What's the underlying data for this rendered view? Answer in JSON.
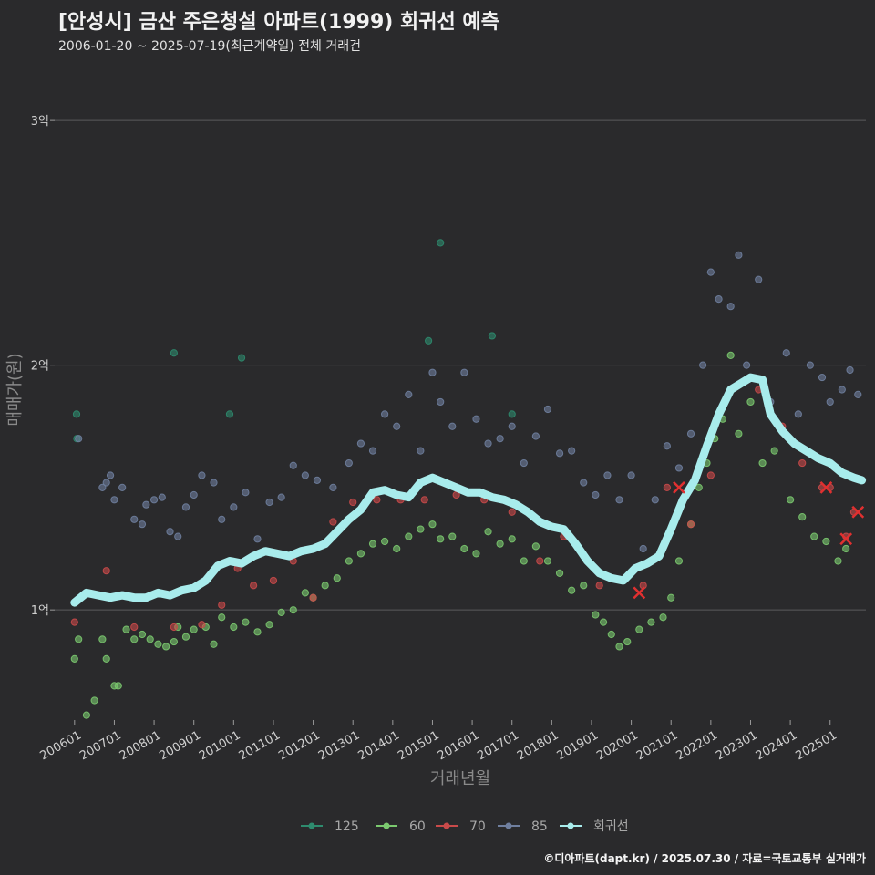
{
  "header": {
    "title": "[안성시] 금산 주은청설 아파트(1999) 회귀선 예측",
    "subtitle": "2006-01-20 ~ 2025-07-19(최근계약일) 전체 거래건"
  },
  "footer": {
    "credit": "©디아파트(dapt.kr) / 2025.07.30 / 자료=국토교통부 실거래가"
  },
  "colors": {
    "s125": "#2e8b6e",
    "s60": "#7bc96f",
    "s70": "#c94a4a",
    "s85": "#6f7f9f",
    "reg": "#a8ecec",
    "cancel": "#e03030"
  },
  "chart_data": {
    "type": "scatter",
    "title": "[안성시] 금산 주은청설 아파트(1999) 회귀선 예측",
    "xlabel": "거래년월",
    "ylabel": "매매가(원)",
    "x_unit": "years since 2006-01",
    "ylim": [
      0.55,
      3.25
    ],
    "y_unit": "억",
    "xlim": [
      -0.5,
      19.9
    ],
    "y_ticks": [
      {
        "value": 1,
        "label": "1억"
      },
      {
        "value": 2,
        "label": "2억"
      },
      {
        "value": 3,
        "label": "3억"
      }
    ],
    "x_ticks": [
      "200601",
      "200701",
      "200801",
      "200901",
      "201001",
      "201101",
      "201201",
      "201301",
      "201401",
      "201501",
      "201601",
      "201701",
      "201801",
      "201901",
      "202001",
      "202101",
      "202201",
      "202301",
      "202401",
      "202501"
    ],
    "legend": [
      "125",
      "60",
      "70",
      "85",
      "회귀선"
    ],
    "series": [
      {
        "name": "125",
        "points": [
          [
            0.05,
            1.8
          ],
          [
            0.06,
            1.7
          ],
          [
            2.5,
            2.05
          ],
          [
            3.9,
            1.8
          ],
          [
            4.2,
            2.03
          ],
          [
            8.9,
            2.1
          ],
          [
            9.2,
            2.5
          ],
          [
            10.5,
            2.12
          ],
          [
            11,
            1.8
          ]
        ]
      },
      {
        "name": "60",
        "points": [
          [
            0.0,
            0.8
          ],
          [
            0.1,
            0.88
          ],
          [
            0.3,
            0.57
          ],
          [
            0.5,
            0.63
          ],
          [
            0.7,
            0.88
          ],
          [
            0.8,
            0.8
          ],
          [
            1.0,
            0.69
          ],
          [
            1.1,
            0.69
          ],
          [
            1.3,
            0.92
          ],
          [
            1.5,
            0.88
          ],
          [
            1.7,
            0.9
          ],
          [
            1.9,
            0.88
          ],
          [
            2.1,
            0.86
          ],
          [
            2.3,
            0.85
          ],
          [
            2.5,
            0.87
          ],
          [
            2.6,
            0.93
          ],
          [
            2.8,
            0.89
          ],
          [
            3.0,
            0.92
          ],
          [
            3.3,
            0.93
          ],
          [
            3.5,
            0.86
          ],
          [
            3.7,
            0.97
          ],
          [
            4.0,
            0.93
          ],
          [
            4.3,
            0.95
          ],
          [
            4.6,
            0.91
          ],
          [
            4.9,
            0.94
          ],
          [
            5.2,
            0.99
          ],
          [
            5.5,
            1.0
          ],
          [
            5.8,
            1.07
          ],
          [
            6.0,
            1.05
          ],
          [
            6.3,
            1.1
          ],
          [
            6.6,
            1.13
          ],
          [
            6.9,
            1.2
          ],
          [
            7.2,
            1.23
          ],
          [
            7.5,
            1.27
          ],
          [
            7.8,
            1.28
          ],
          [
            8.1,
            1.25
          ],
          [
            8.4,
            1.3
          ],
          [
            8.7,
            1.33
          ],
          [
            9.0,
            1.35
          ],
          [
            9.2,
            1.29
          ],
          [
            9.5,
            1.3
          ],
          [
            9.8,
            1.25
          ],
          [
            10.1,
            1.23
          ],
          [
            10.4,
            1.32
          ],
          [
            10.7,
            1.27
          ],
          [
            11.0,
            1.29
          ],
          [
            11.3,
            1.2
          ],
          [
            11.6,
            1.26
          ],
          [
            11.9,
            1.2
          ],
          [
            12.2,
            1.15
          ],
          [
            12.5,
            1.08
          ],
          [
            12.8,
            1.1
          ],
          [
            13.1,
            0.98
          ],
          [
            13.3,
            0.95
          ],
          [
            13.5,
            0.9
          ],
          [
            13.7,
            0.85
          ],
          [
            13.9,
            0.87
          ],
          [
            14.2,
            0.92
          ],
          [
            14.5,
            0.95
          ],
          [
            14.8,
            0.97
          ],
          [
            15.0,
            1.05
          ],
          [
            15.2,
            1.2
          ],
          [
            15.5,
            1.35
          ],
          [
            15.7,
            1.5
          ],
          [
            15.9,
            1.6
          ],
          [
            16.1,
            1.7
          ],
          [
            16.3,
            1.78
          ],
          [
            16.5,
            2.04
          ],
          [
            16.7,
            1.72
          ],
          [
            17.0,
            1.85
          ],
          [
            17.3,
            1.6
          ],
          [
            17.6,
            1.65
          ],
          [
            18.0,
            1.45
          ],
          [
            18.3,
            1.38
          ],
          [
            18.6,
            1.3
          ],
          [
            18.9,
            1.28
          ],
          [
            19.2,
            1.2
          ],
          [
            19.4,
            1.25
          ]
        ]
      },
      {
        "name": "70",
        "points": [
          [
            0.0,
            0.95
          ],
          [
            0.8,
            1.16
          ],
          [
            1.5,
            0.93
          ],
          [
            2.5,
            0.93
          ],
          [
            3.2,
            0.94
          ],
          [
            3.7,
            1.02
          ],
          [
            4.1,
            1.17
          ],
          [
            4.5,
            1.1
          ],
          [
            5.0,
            1.12
          ],
          [
            5.5,
            1.2
          ],
          [
            6.0,
            1.05
          ],
          [
            6.5,
            1.36
          ],
          [
            7.0,
            1.44
          ],
          [
            7.6,
            1.45
          ],
          [
            8.2,
            1.45
          ],
          [
            8.8,
            1.45
          ],
          [
            9.6,
            1.47
          ],
          [
            10.3,
            1.45
          ],
          [
            11.0,
            1.4
          ],
          [
            11.7,
            1.2
          ],
          [
            12.3,
            1.3
          ],
          [
            13.2,
            1.1
          ],
          [
            14.3,
            1.1
          ],
          [
            14.9,
            1.5
          ],
          [
            15.5,
            1.35
          ],
          [
            16.0,
            1.55
          ],
          [
            17.2,
            1.9
          ],
          [
            17.8,
            1.75
          ],
          [
            18.3,
            1.6
          ],
          [
            18.8,
            1.5
          ],
          [
            19.0,
            1.5
          ],
          [
            19.4,
            1.3
          ],
          [
            19.6,
            1.4
          ]
        ]
      },
      {
        "name": "85",
        "points": [
          [
            0.1,
            1.7
          ],
          [
            0.7,
            1.5
          ],
          [
            0.8,
            1.52
          ],
          [
            0.9,
            1.55
          ],
          [
            1.0,
            1.45
          ],
          [
            1.2,
            1.5
          ],
          [
            1.5,
            1.37
          ],
          [
            1.7,
            1.35
          ],
          [
            1.8,
            1.43
          ],
          [
            2.0,
            1.45
          ],
          [
            2.2,
            1.46
          ],
          [
            2.4,
            1.32
          ],
          [
            2.6,
            1.3
          ],
          [
            2.8,
            1.42
          ],
          [
            3.0,
            1.47
          ],
          [
            3.2,
            1.55
          ],
          [
            3.5,
            1.52
          ],
          [
            3.7,
            1.37
          ],
          [
            4.0,
            1.42
          ],
          [
            4.3,
            1.48
          ],
          [
            4.6,
            1.29
          ],
          [
            4.9,
            1.44
          ],
          [
            5.2,
            1.46
          ],
          [
            5.5,
            1.59
          ],
          [
            5.8,
            1.55
          ],
          [
            6.1,
            1.53
          ],
          [
            6.5,
            1.5
          ],
          [
            6.9,
            1.6
          ],
          [
            7.2,
            1.68
          ],
          [
            7.5,
            1.65
          ],
          [
            7.8,
            1.8
          ],
          [
            8.1,
            1.75
          ],
          [
            8.4,
            1.88
          ],
          [
            8.7,
            1.65
          ],
          [
            9.0,
            1.97
          ],
          [
            9.2,
            1.85
          ],
          [
            9.5,
            1.75
          ],
          [
            9.8,
            1.97
          ],
          [
            10.1,
            1.78
          ],
          [
            10.4,
            1.68
          ],
          [
            10.7,
            1.7
          ],
          [
            11.0,
            1.75
          ],
          [
            11.3,
            1.6
          ],
          [
            11.6,
            1.71
          ],
          [
            11.9,
            1.82
          ],
          [
            12.2,
            1.64
          ],
          [
            12.5,
            1.65
          ],
          [
            12.8,
            1.52
          ],
          [
            13.1,
            1.47
          ],
          [
            13.4,
            1.55
          ],
          [
            13.7,
            1.45
          ],
          [
            14.0,
            1.55
          ],
          [
            14.3,
            1.25
          ],
          [
            14.6,
            1.45
          ],
          [
            14.9,
            1.67
          ],
          [
            15.2,
            1.58
          ],
          [
            15.5,
            1.72
          ],
          [
            15.8,
            2.0
          ],
          [
            16.0,
            2.38
          ],
          [
            16.2,
            2.27
          ],
          [
            16.5,
            2.24
          ],
          [
            16.7,
            2.45
          ],
          [
            16.9,
            2.0
          ],
          [
            17.2,
            2.35
          ],
          [
            17.5,
            1.85
          ],
          [
            17.9,
            2.05
          ],
          [
            18.2,
            1.8
          ],
          [
            18.5,
            2.0
          ],
          [
            18.8,
            1.95
          ],
          [
            19.0,
            1.85
          ],
          [
            19.3,
            1.9
          ],
          [
            19.5,
            1.98
          ],
          [
            19.7,
            1.88
          ]
        ]
      },
      {
        "name": "회귀선",
        "points": [
          [
            0,
            1.03
          ],
          [
            0.3,
            1.07
          ],
          [
            0.6,
            1.06
          ],
          [
            0.9,
            1.05
          ],
          [
            1.2,
            1.06
          ],
          [
            1.5,
            1.05
          ],
          [
            1.8,
            1.05
          ],
          [
            2.1,
            1.07
          ],
          [
            2.4,
            1.06
          ],
          [
            2.7,
            1.08
          ],
          [
            3.0,
            1.09
          ],
          [
            3.3,
            1.12
          ],
          [
            3.6,
            1.18
          ],
          [
            3.9,
            1.2
          ],
          [
            4.2,
            1.19
          ],
          [
            4.5,
            1.22
          ],
          [
            4.8,
            1.24
          ],
          [
            5.1,
            1.23
          ],
          [
            5.4,
            1.22
          ],
          [
            5.7,
            1.24
          ],
          [
            6.0,
            1.25
          ],
          [
            6.3,
            1.27
          ],
          [
            6.6,
            1.32
          ],
          [
            6.9,
            1.37
          ],
          [
            7.2,
            1.41
          ],
          [
            7.5,
            1.48
          ],
          [
            7.8,
            1.49
          ],
          [
            8.1,
            1.47
          ],
          [
            8.4,
            1.46
          ],
          [
            8.7,
            1.52
          ],
          [
            9.0,
            1.54
          ],
          [
            9.3,
            1.52
          ],
          [
            9.6,
            1.5
          ],
          [
            9.9,
            1.48
          ],
          [
            10.2,
            1.48
          ],
          [
            10.5,
            1.46
          ],
          [
            10.8,
            1.45
          ],
          [
            11.1,
            1.43
          ],
          [
            11.4,
            1.4
          ],
          [
            11.7,
            1.36
          ],
          [
            12.0,
            1.34
          ],
          [
            12.3,
            1.33
          ],
          [
            12.6,
            1.27
          ],
          [
            12.9,
            1.2
          ],
          [
            13.2,
            1.15
          ],
          [
            13.5,
            1.13
          ],
          [
            13.8,
            1.12
          ],
          [
            14.1,
            1.17
          ],
          [
            14.4,
            1.19
          ],
          [
            14.7,
            1.22
          ],
          [
            15.0,
            1.33
          ],
          [
            15.3,
            1.45
          ],
          [
            15.6,
            1.53
          ],
          [
            15.9,
            1.67
          ],
          [
            16.2,
            1.8
          ],
          [
            16.5,
            1.9
          ],
          [
            16.8,
            1.93
          ],
          [
            17.0,
            1.95
          ],
          [
            17.3,
            1.94
          ],
          [
            17.5,
            1.8
          ],
          [
            17.8,
            1.73
          ],
          [
            18.1,
            1.68
          ],
          [
            18.4,
            1.65
          ],
          [
            18.7,
            1.62
          ],
          [
            19.0,
            1.6
          ],
          [
            19.3,
            1.56
          ],
          [
            19.6,
            1.54
          ],
          [
            19.8,
            1.53
          ]
        ]
      }
    ],
    "cancelled_points": [
      [
        14.2,
        1.07
      ],
      [
        15.2,
        1.5
      ],
      [
        18.9,
        1.5
      ],
      [
        19.4,
        1.29
      ],
      [
        19.7,
        1.4
      ]
    ]
  }
}
